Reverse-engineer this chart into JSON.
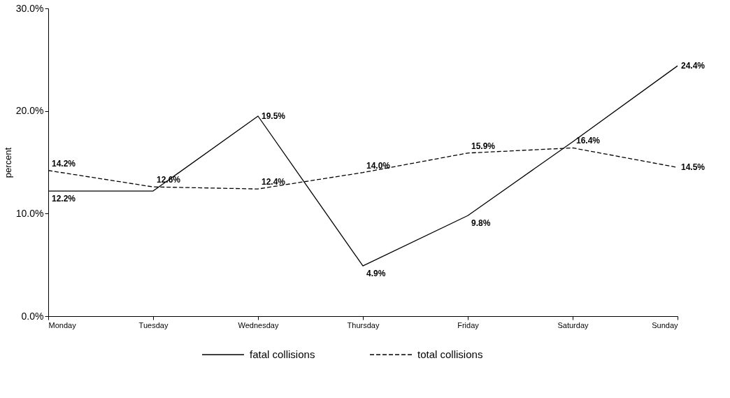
{
  "chart_data": {
    "type": "line",
    "categories": [
      "Monday",
      "Tuesday",
      "Wednesday",
      "Thursday",
      "Friday",
      "Saturday",
      "Sunday"
    ],
    "ylabel": "percent",
    "ylim": [
      0,
      30
    ],
    "yticks": [
      {
        "value": 0,
        "label": "0.0%"
      },
      {
        "value": 10,
        "label": "10.0%"
      },
      {
        "value": 20,
        "label": "20.0%"
      },
      {
        "value": 30,
        "label": "30.0%"
      }
    ],
    "series": [
      {
        "name": "fatal collisions",
        "color": "#000000",
        "line_style": "solid",
        "values": [
          12.2,
          12.2,
          19.5,
          4.9,
          9.8,
          17.0,
          24.4
        ],
        "value_labels": [
          "12.2%",
          null,
          "19.5%",
          "4.9%",
          "9.8%",
          null,
          "24.4%"
        ]
      },
      {
        "name": "total collisions",
        "color": "#000000",
        "line_style": "dashed",
        "values": [
          14.2,
          12.6,
          12.4,
          14.0,
          15.9,
          16.4,
          14.5
        ],
        "value_labels": [
          "14.2%",
          "12.6%",
          "12.4%",
          "14.0%",
          "15.9%",
          "16.4%",
          "14.5%"
        ]
      }
    ],
    "grid": false,
    "legend": "bottom",
    "marker": "none"
  }
}
